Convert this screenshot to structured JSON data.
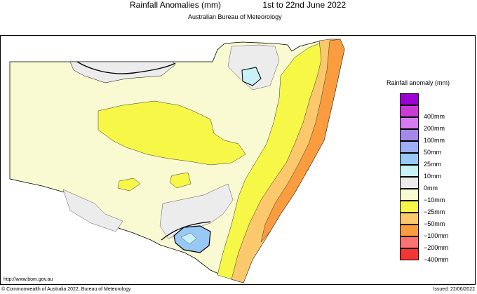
{
  "header": {
    "title": "Rainfall Anomalies (mm)",
    "period": "1st to 22nd June 2022",
    "agency": "Australian Bureau of Meteorology"
  },
  "legend": {
    "title": "Rainfall anomaly (mm)",
    "items": [
      {
        "label": "",
        "color": "#9b00d3"
      },
      {
        "label": "400mm",
        "color": "#c93ad6"
      },
      {
        "label": "200mm",
        "color": "#d77bf0"
      },
      {
        "label": "100mm",
        "color": "#a48ae8"
      },
      {
        "label": "50mm",
        "color": "#9eb0f4"
      },
      {
        "label": "25mm",
        "color": "#98c8f5"
      },
      {
        "label": "10mm",
        "color": "#c9f2f6"
      },
      {
        "label": "0mm",
        "color": "#ececec"
      },
      {
        "label": "−10mm",
        "color": "#fafad2"
      },
      {
        "label": "−25mm",
        "color": "#f7f748"
      },
      {
        "label": "−50mm",
        "color": "#fbc96b"
      },
      {
        "label": "−100mm",
        "color": "#fb9d3f"
      },
      {
        "label": "−200mm",
        "color": "#fb7373"
      },
      {
        "label": "−400mm",
        "color": "#f53535"
      }
    ]
  },
  "footer": {
    "url": "http://www.bom.gov.au",
    "copyright": "© Commonwealth of Australia 2022, Bureau of Meteorology",
    "issued": "Issued: 22/06/2022"
  },
  "map_colors": {
    "base": "#fafad2",
    "grey": "#ececec",
    "yellow": "#f7f748",
    "orange_light": "#fbc96b",
    "orange": "#fb9d3f",
    "red": "#fb7373",
    "blue_light": "#c9f2f6",
    "blue": "#98c8f5"
  }
}
